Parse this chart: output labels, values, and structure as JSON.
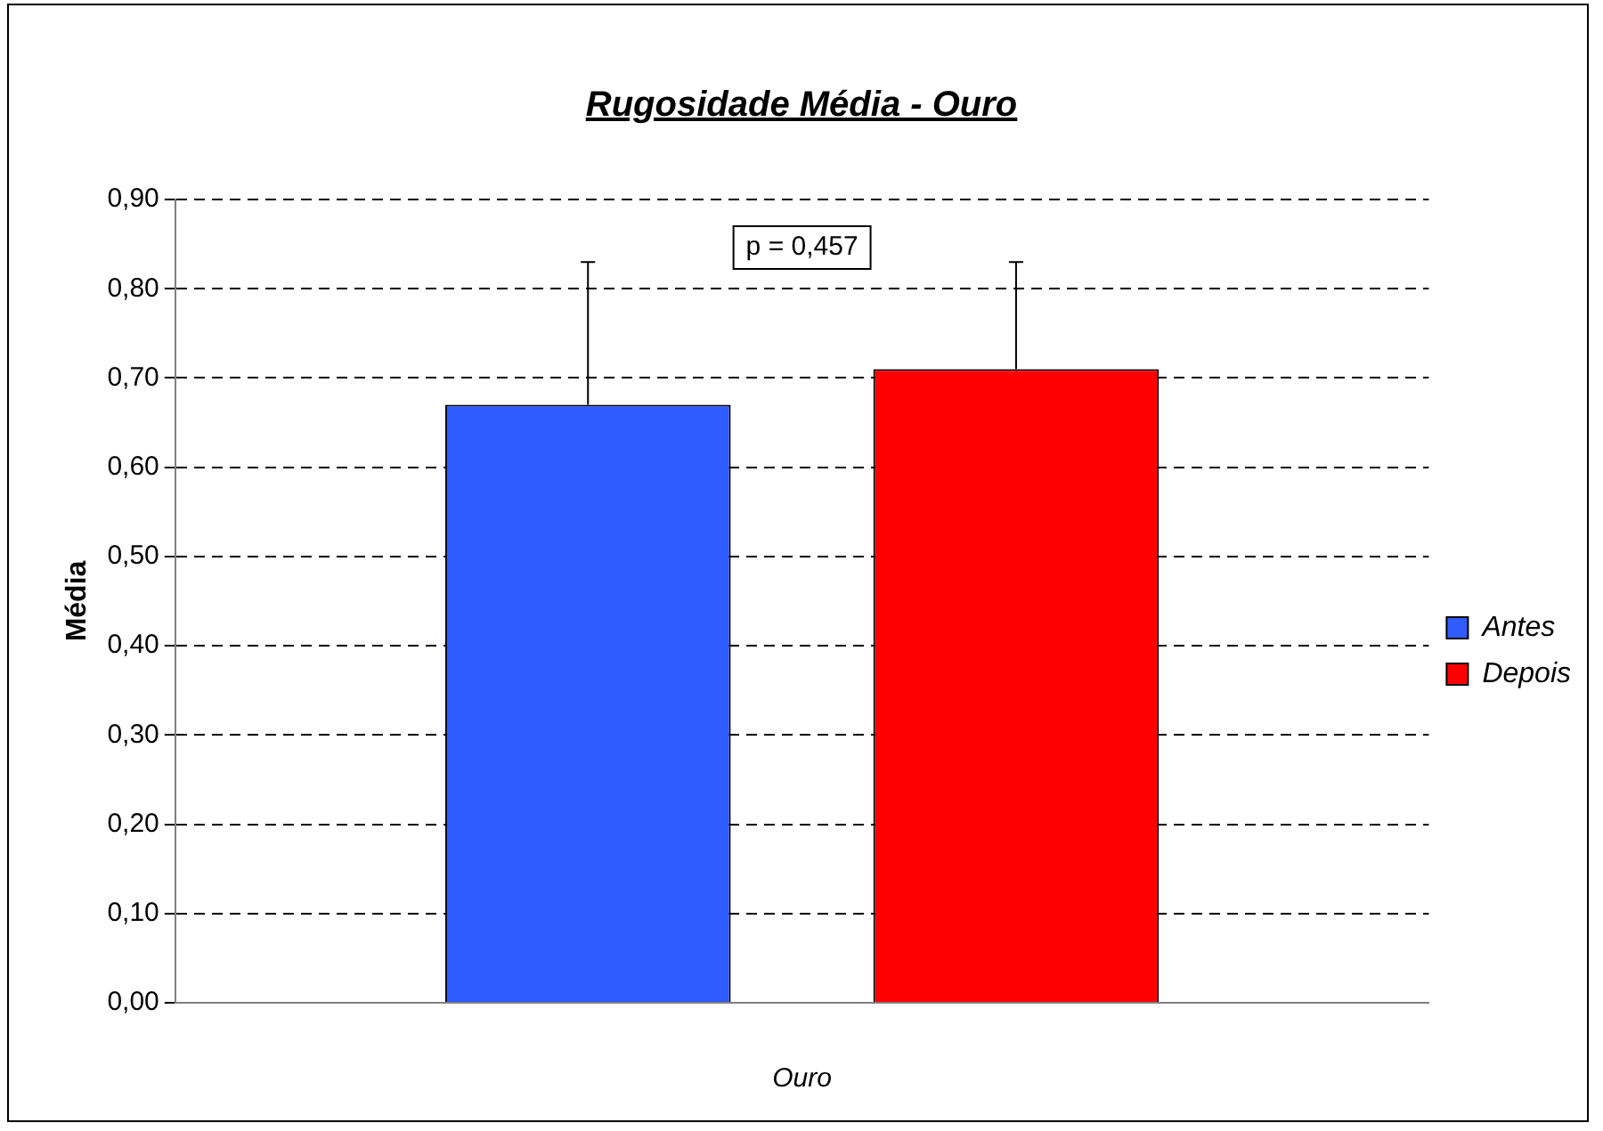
{
  "chart_data": {
    "type": "bar",
    "title": "Rugosidade Média - Ouro",
    "xlabel": "Ouro",
    "ylabel": "Média",
    "categories": [
      null
    ],
    "series": [
      {
        "name": "Antes",
        "color": "#2f5bff",
        "values": [
          0.67
        ],
        "errors": [
          [
            0.67,
            0.83
          ]
        ]
      },
      {
        "name": "Depois",
        "color": "#ff0000",
        "values": [
          0.71
        ],
        "errors": [
          [
            0.71,
            0.83
          ]
        ]
      }
    ],
    "ylim": [
      0,
      0.9
    ],
    "yticks": [
      {
        "value": 0,
        "label": "0,00"
      },
      {
        "value": 0.1,
        "label": "0,10"
      },
      {
        "value": 0.2,
        "label": "0,20"
      },
      {
        "value": 0.3,
        "label": "0,30"
      },
      {
        "value": 0.4,
        "label": "0,40"
      },
      {
        "value": 0.5,
        "label": "0,50"
      },
      {
        "value": 0.6,
        "label": "0,60"
      },
      {
        "value": 0.7,
        "label": "0,70"
      },
      {
        "value": 0.8,
        "label": "0,80"
      },
      {
        "value": 0.9,
        "label": "0,90"
      }
    ],
    "grid": "y",
    "legend": "right",
    "annotations": [
      "p = 0,457"
    ]
  }
}
